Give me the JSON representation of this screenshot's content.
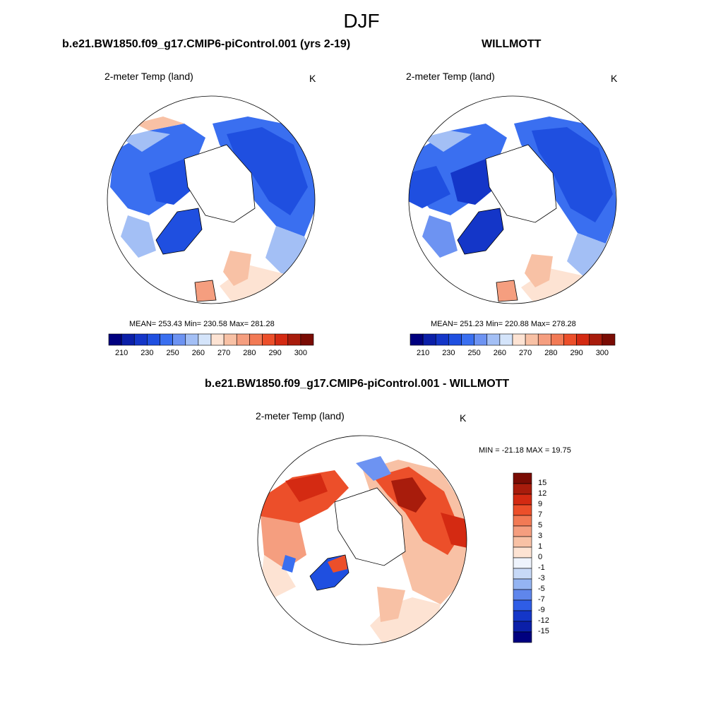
{
  "title": "DJF",
  "panels": [
    {
      "id": "model",
      "title": "b.e21.BW1850.f09_g17.CMIP6-piControl.001 (yrs 2-19)",
      "variable": "2-meter Temp (land)",
      "unit": "K",
      "stats": "MEAN= 253.43  Min= 230.58  Max= 281.28"
    },
    {
      "id": "obs",
      "title": "WILLMOTT",
      "variable": "2-meter Temp (land)",
      "unit": "K",
      "stats": "MEAN= 251.23  Min= 220.88  Max= 278.28"
    },
    {
      "id": "diff",
      "title": "b.e21.BW1850.f09_g17.CMIP6-piControl.001 - WILLMOTT",
      "variable": "2-meter Temp (land)",
      "unit": "K",
      "stats": "MIN = -21.18 MAX =  19.75"
    }
  ],
  "abs_colorbar": {
    "tick_labels": [
      "210",
      "230",
      "250",
      "260",
      "270",
      "280",
      "290",
      "300"
    ],
    "colors": [
      "#00007f",
      "#0b1fa8",
      "#1436c8",
      "#1f4fe0",
      "#3a6ff0",
      "#6d93f2",
      "#a3bff5",
      "#d4e4fa",
      "#fde3d3",
      "#f8c1a5",
      "#f59e7f",
      "#f27a55",
      "#ec4f2a",
      "#d42a12",
      "#a81c0c",
      "#7a0c04"
    ]
  },
  "diff_colorbar": {
    "tick_labels": [
      "15",
      "12",
      "9",
      "7",
      "5",
      "3",
      "1",
      "0",
      "-1",
      "-3",
      "-5",
      "-7",
      "-9",
      "-12",
      "-15"
    ],
    "colors": [
      "#7a0c04",
      "#a81c0c",
      "#d42a12",
      "#ec4f2a",
      "#f27a55",
      "#f59e7f",
      "#f8c1a5",
      "#fde3d3",
      "#eef3fc",
      "#c7d9f7",
      "#94b4f2",
      "#5f86ec",
      "#2f5de6",
      "#1436c8",
      "#0b1fa8",
      "#00007f"
    ]
  },
  "map_colors": {
    "deep_blue": "#1f4fe0",
    "mid_blue": "#3a6ff0",
    "light_blue": "#a3bff5",
    "pale_blue": "#d4e4fa",
    "pale_red": "#fde3d3",
    "salmon": "#f8c1a5",
    "orange_red": "#ec4f2a",
    "dark_red": "#a81c0c"
  }
}
